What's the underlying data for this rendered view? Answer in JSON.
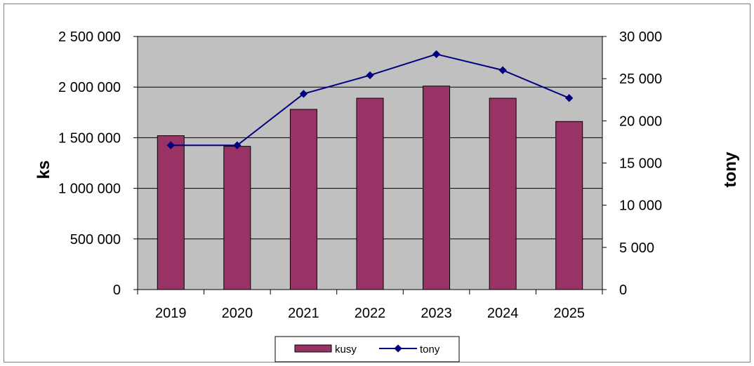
{
  "chart_data": {
    "type": "bar",
    "categories": [
      "2019",
      "2020",
      "2021",
      "2022",
      "2023",
      "2024",
      "2025"
    ],
    "series": [
      {
        "name": "kusy",
        "type": "bar",
        "axis": "left",
        "color": "#993366",
        "values": [
          1520000,
          1415000,
          1780000,
          1890000,
          2010000,
          1890000,
          1660000
        ]
      },
      {
        "name": "tony",
        "type": "line",
        "axis": "right",
        "color": "#000080",
        "values": [
          17100,
          17100,
          23200,
          25400,
          27900,
          26000,
          22700
        ]
      }
    ],
    "ylabel": "ks",
    "y2label": "tony",
    "ylim": [
      0,
      2500000
    ],
    "y2lim": [
      0,
      30000
    ],
    "yticks": [
      "0",
      "500 000",
      "1 000 000",
      "1 500 000",
      "2 000 000",
      "2 500 000"
    ],
    "y2ticks": [
      "0",
      "5 000",
      "10 000",
      "15 000",
      "20 000",
      "25 000",
      "30 000"
    ],
    "grid": true,
    "plot_background": "#c0c0c0",
    "legend_position": "bottom"
  }
}
